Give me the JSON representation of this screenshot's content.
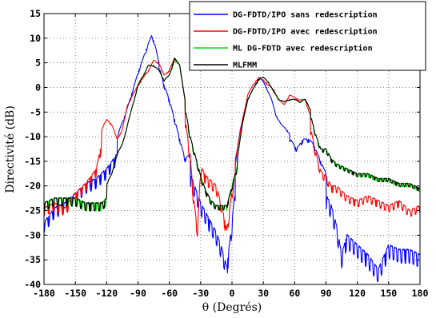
{
  "chart_data": {
    "type": "line",
    "xlabel": "θ (Degrés)",
    "ylabel": "Directivité (dB)",
    "xlim": [
      -180,
      180
    ],
    "ylim": [
      -40,
      15
    ],
    "xticks": [
      -180,
      -150,
      -120,
      -90,
      -60,
      -30,
      0,
      30,
      60,
      90,
      120,
      150,
      180
    ],
    "yticks": [
      15,
      10,
      5,
      0,
      -5,
      -10,
      -15,
      -20,
      -25,
      -30,
      -35,
      -40
    ],
    "grid": true,
    "legend_position": "top-right",
    "series": [
      {
        "name": "DG-FDTD/IPO sans redescription",
        "color": "#0000ff",
        "anchors": [
          [
            -180,
            -23
          ],
          [
            -170,
            -20
          ],
          [
            -160,
            -19
          ],
          [
            -150,
            -17
          ],
          [
            -140,
            -15
          ],
          [
            -130,
            -14
          ],
          [
            -120,
            -12
          ],
          [
            -110,
            -9
          ],
          [
            -100,
            -3
          ],
          [
            -90,
            4
          ],
          [
            -80,
            10
          ],
          [
            -77,
            11.5
          ],
          [
            -74,
            10
          ],
          [
            -70,
            6
          ],
          [
            -65,
            2
          ],
          [
            -60,
            -1
          ],
          [
            -55,
            -5
          ],
          [
            -50,
            -9
          ],
          [
            -45,
            -13
          ],
          [
            -40,
            -12
          ],
          [
            -35,
            -15
          ],
          [
            -30,
            -18
          ],
          [
            -25,
            -20
          ],
          [
            -20,
            -22
          ],
          [
            -15,
            -24
          ],
          [
            -10,
            -27
          ],
          [
            -5,
            -31
          ],
          [
            0,
            -22
          ],
          [
            3,
            -15
          ],
          [
            8,
            -8
          ],
          [
            15,
            -2
          ],
          [
            22,
            1
          ],
          [
            27,
            2.5
          ],
          [
            32,
            1
          ],
          [
            38,
            -2
          ],
          [
            42,
            -5
          ],
          [
            47,
            -7
          ],
          [
            52,
            -8
          ],
          [
            56,
            -9
          ],
          [
            62,
            -11
          ],
          [
            68,
            -9
          ],
          [
            74,
            -9
          ],
          [
            78,
            -10
          ],
          [
            82,
            -12
          ],
          [
            88,
            -15
          ],
          [
            95,
            -18
          ],
          [
            100,
            -22
          ],
          [
            105,
            -28
          ],
          [
            110,
            -24
          ],
          [
            120,
            -26
          ],
          [
            130,
            -28
          ],
          [
            140,
            -31
          ],
          [
            150,
            -26
          ],
          [
            160,
            -27
          ],
          [
            170,
            -27
          ],
          [
            180,
            -28
          ]
        ],
        "ripple": [
          {
            "from": -180,
            "to": -110,
            "amp": 9,
            "period": 4.5
          },
          {
            "from": -110,
            "to": -70,
            "amp": 2,
            "period": 7
          },
          {
            "from": -70,
            "to": -40,
            "amp": 3,
            "period": 5
          },
          {
            "from": -40,
            "to": 3,
            "amp": 11,
            "period": 3.6
          },
          {
            "from": 3,
            "to": 55,
            "amp": 1,
            "period": 10
          },
          {
            "from": 55,
            "to": 90,
            "amp": 3,
            "period": 6
          },
          {
            "from": 90,
            "to": 180,
            "amp": 12,
            "period": 3.8
          }
        ]
      },
      {
        "name": "DG-FDTD/IPO avec redescription",
        "color": "#ff0000",
        "anchors": [
          [
            -180,
            -21
          ],
          [
            -170,
            -20
          ],
          [
            -160,
            -21
          ],
          [
            -150,
            -18
          ],
          [
            -140,
            -16
          ],
          [
            -130,
            -13
          ],
          [
            -125,
            -8
          ],
          [
            -120,
            -6
          ],
          [
            -115,
            -7
          ],
          [
            -110,
            -10
          ],
          [
            -105,
            -8
          ],
          [
            -100,
            -3
          ],
          [
            -90,
            1
          ],
          [
            -80,
            4
          ],
          [
            -75,
            6
          ],
          [
            -70,
            5.5
          ],
          [
            -65,
            3
          ],
          [
            -60,
            4
          ],
          [
            -55,
            6.5
          ],
          [
            -50,
            5
          ],
          [
            -45,
            -2
          ],
          [
            -40,
            -10
          ],
          [
            -37,
            -18
          ],
          [
            -33,
            -25
          ],
          [
            -30,
            -12
          ],
          [
            -25,
            -14
          ],
          [
            -20,
            -15
          ],
          [
            -15,
            -16
          ],
          [
            -10,
            -20
          ],
          [
            -5,
            -25
          ],
          [
            0,
            -17
          ],
          [
            5,
            -12
          ],
          [
            10,
            -6
          ],
          [
            15,
            -1
          ],
          [
            20,
            1
          ],
          [
            25,
            2.5
          ],
          [
            30,
            2
          ],
          [
            35,
            1
          ],
          [
            40,
            0
          ],
          [
            45,
            -2
          ],
          [
            50,
            -3
          ],
          [
            55,
            -1
          ],
          [
            60,
            -1.5
          ],
          [
            65,
            -2
          ],
          [
            70,
            -2
          ],
          [
            75,
            -5
          ],
          [
            80,
            -10
          ],
          [
            85,
            -14
          ],
          [
            90,
            -15
          ],
          [
            95,
            -17
          ],
          [
            100,
            -17
          ],
          [
            110,
            -19
          ],
          [
            120,
            -20
          ],
          [
            130,
            -19
          ],
          [
            140,
            -20
          ],
          [
            150,
            -21
          ],
          [
            160,
            -20
          ],
          [
            170,
            -22
          ],
          [
            180,
            -21
          ]
        ],
        "ripple": [
          {
            "from": -180,
            "to": -125,
            "amp": 7,
            "period": 4.5
          },
          {
            "from": -125,
            "to": -45,
            "amp": 1,
            "period": 9
          },
          {
            "from": -45,
            "to": 3,
            "amp": 8,
            "period": 3.8
          },
          {
            "from": 3,
            "to": 75,
            "amp": 1,
            "period": 10
          },
          {
            "from": 75,
            "to": 180,
            "amp": 6,
            "period": 4.2
          }
        ]
      },
      {
        "name": "ML DG-FDTD avec redescription",
        "color": "#00e000",
        "anchors": [
          [
            -180,
            -20
          ],
          [
            -170,
            -19
          ],
          [
            -160,
            -19
          ],
          [
            -150,
            -19
          ],
          [
            -140,
            -20
          ],
          [
            -130,
            -20
          ],
          [
            -125,
            -20
          ],
          [
            -120,
            -19
          ],
          [
            -115,
            -17
          ],
          [
            -110,
            -13
          ],
          [
            -105,
            -11
          ],
          [
            -100,
            -7
          ],
          [
            -95,
            -3
          ],
          [
            -90,
            1
          ],
          [
            -85,
            3
          ],
          [
            -80,
            5
          ],
          [
            -75,
            5
          ],
          [
            -70,
            4
          ],
          [
            -65,
            2
          ],
          [
            -60,
            3
          ],
          [
            -55,
            6
          ],
          [
            -50,
            5
          ],
          [
            -45,
            -2
          ],
          [
            -40,
            -8
          ],
          [
            -35,
            -12
          ],
          [
            -30,
            -16
          ],
          [
            -25,
            -19
          ],
          [
            -20,
            -21
          ],
          [
            -15,
            -22
          ],
          [
            -10,
            -22
          ],
          [
            -5,
            -22
          ],
          [
            0,
            -18
          ],
          [
            5,
            -14
          ],
          [
            10,
            -7
          ],
          [
            15,
            -2
          ],
          [
            20,
            0
          ],
          [
            25,
            2
          ],
          [
            30,
            2.5
          ],
          [
            35,
            1.5
          ],
          [
            40,
            -0.5
          ],
          [
            45,
            -2
          ],
          [
            50,
            -2.5
          ],
          [
            55,
            -2
          ],
          [
            60,
            -2
          ],
          [
            65,
            -2.5
          ],
          [
            70,
            -2
          ],
          [
            75,
            -4
          ],
          [
            80,
            -8
          ],
          [
            85,
            -11
          ],
          [
            90,
            -11
          ],
          [
            95,
            -13
          ],
          [
            100,
            -14
          ],
          [
            110,
            -15
          ],
          [
            120,
            -16
          ],
          [
            130,
            -16
          ],
          [
            140,
            -17
          ],
          [
            150,
            -17
          ],
          [
            160,
            -18
          ],
          [
            170,
            -18
          ],
          [
            180,
            -19
          ]
        ],
        "ripple": [
          {
            "from": -180,
            "to": -120,
            "amp": 7,
            "period": 4.5
          },
          {
            "from": -120,
            "to": -45,
            "amp": 1,
            "period": 9
          },
          {
            "from": -45,
            "to": 5,
            "amp": 4,
            "period": 4
          },
          {
            "from": 5,
            "to": 75,
            "amp": 0.8,
            "period": 10
          },
          {
            "from": 75,
            "to": 180,
            "amp": 3,
            "period": 4
          }
        ]
      },
      {
        "name": "MLFMM",
        "color": "#000000",
        "anchors": [
          [
            -180,
            -20
          ],
          [
            -170,
            -19
          ],
          [
            -160,
            -19
          ],
          [
            -150,
            -19
          ],
          [
            -140,
            -20
          ],
          [
            -130,
            -20
          ],
          [
            -125,
            -20
          ],
          [
            -120,
            -19
          ],
          [
            -115,
            -17
          ],
          [
            -110,
            -13
          ],
          [
            -105,
            -11
          ],
          [
            -100,
            -7
          ],
          [
            -95,
            -3
          ],
          [
            -90,
            1
          ],
          [
            -85,
            3
          ],
          [
            -80,
            5
          ],
          [
            -75,
            5
          ],
          [
            -70,
            4
          ],
          [
            -65,
            2
          ],
          [
            -60,
            3
          ],
          [
            -55,
            6.5
          ],
          [
            -50,
            5
          ],
          [
            -45,
            -2
          ],
          [
            -40,
            -8
          ],
          [
            -35,
            -12
          ],
          [
            -30,
            -16
          ],
          [
            -25,
            -19
          ],
          [
            -20,
            -21
          ],
          [
            -15,
            -22
          ],
          [
            -10,
            -22
          ],
          [
            -5,
            -22
          ],
          [
            0,
            -18
          ],
          [
            5,
            -14
          ],
          [
            10,
            -7
          ],
          [
            15,
            -2
          ],
          [
            20,
            0
          ],
          [
            25,
            2
          ],
          [
            30,
            2.5
          ],
          [
            35,
            1.5
          ],
          [
            40,
            -0.5
          ],
          [
            45,
            -2
          ],
          [
            50,
            -2.5
          ],
          [
            55,
            -2
          ],
          [
            60,
            -2
          ],
          [
            65,
            -2.5
          ],
          [
            70,
            -2
          ],
          [
            75,
            -4
          ],
          [
            80,
            -8
          ],
          [
            85,
            -11
          ],
          [
            90,
            -11
          ],
          [
            95,
            -13
          ],
          [
            100,
            -14
          ],
          [
            110,
            -15
          ],
          [
            120,
            -16
          ],
          [
            130,
            -16
          ],
          [
            140,
            -17
          ],
          [
            150,
            -17
          ],
          [
            160,
            -18
          ],
          [
            170,
            -18
          ],
          [
            180,
            -19
          ]
        ],
        "ripple": [
          {
            "from": -180,
            "to": -120,
            "amp": 7,
            "period": 4.4
          },
          {
            "from": -120,
            "to": -45,
            "amp": 1,
            "period": 9
          },
          {
            "from": -45,
            "to": 5,
            "amp": 4,
            "period": 4.1
          },
          {
            "from": 5,
            "to": 75,
            "amp": 0.8,
            "period": 10
          },
          {
            "from": 75,
            "to": 180,
            "amp": 3,
            "period": 4.1
          }
        ]
      }
    ]
  }
}
